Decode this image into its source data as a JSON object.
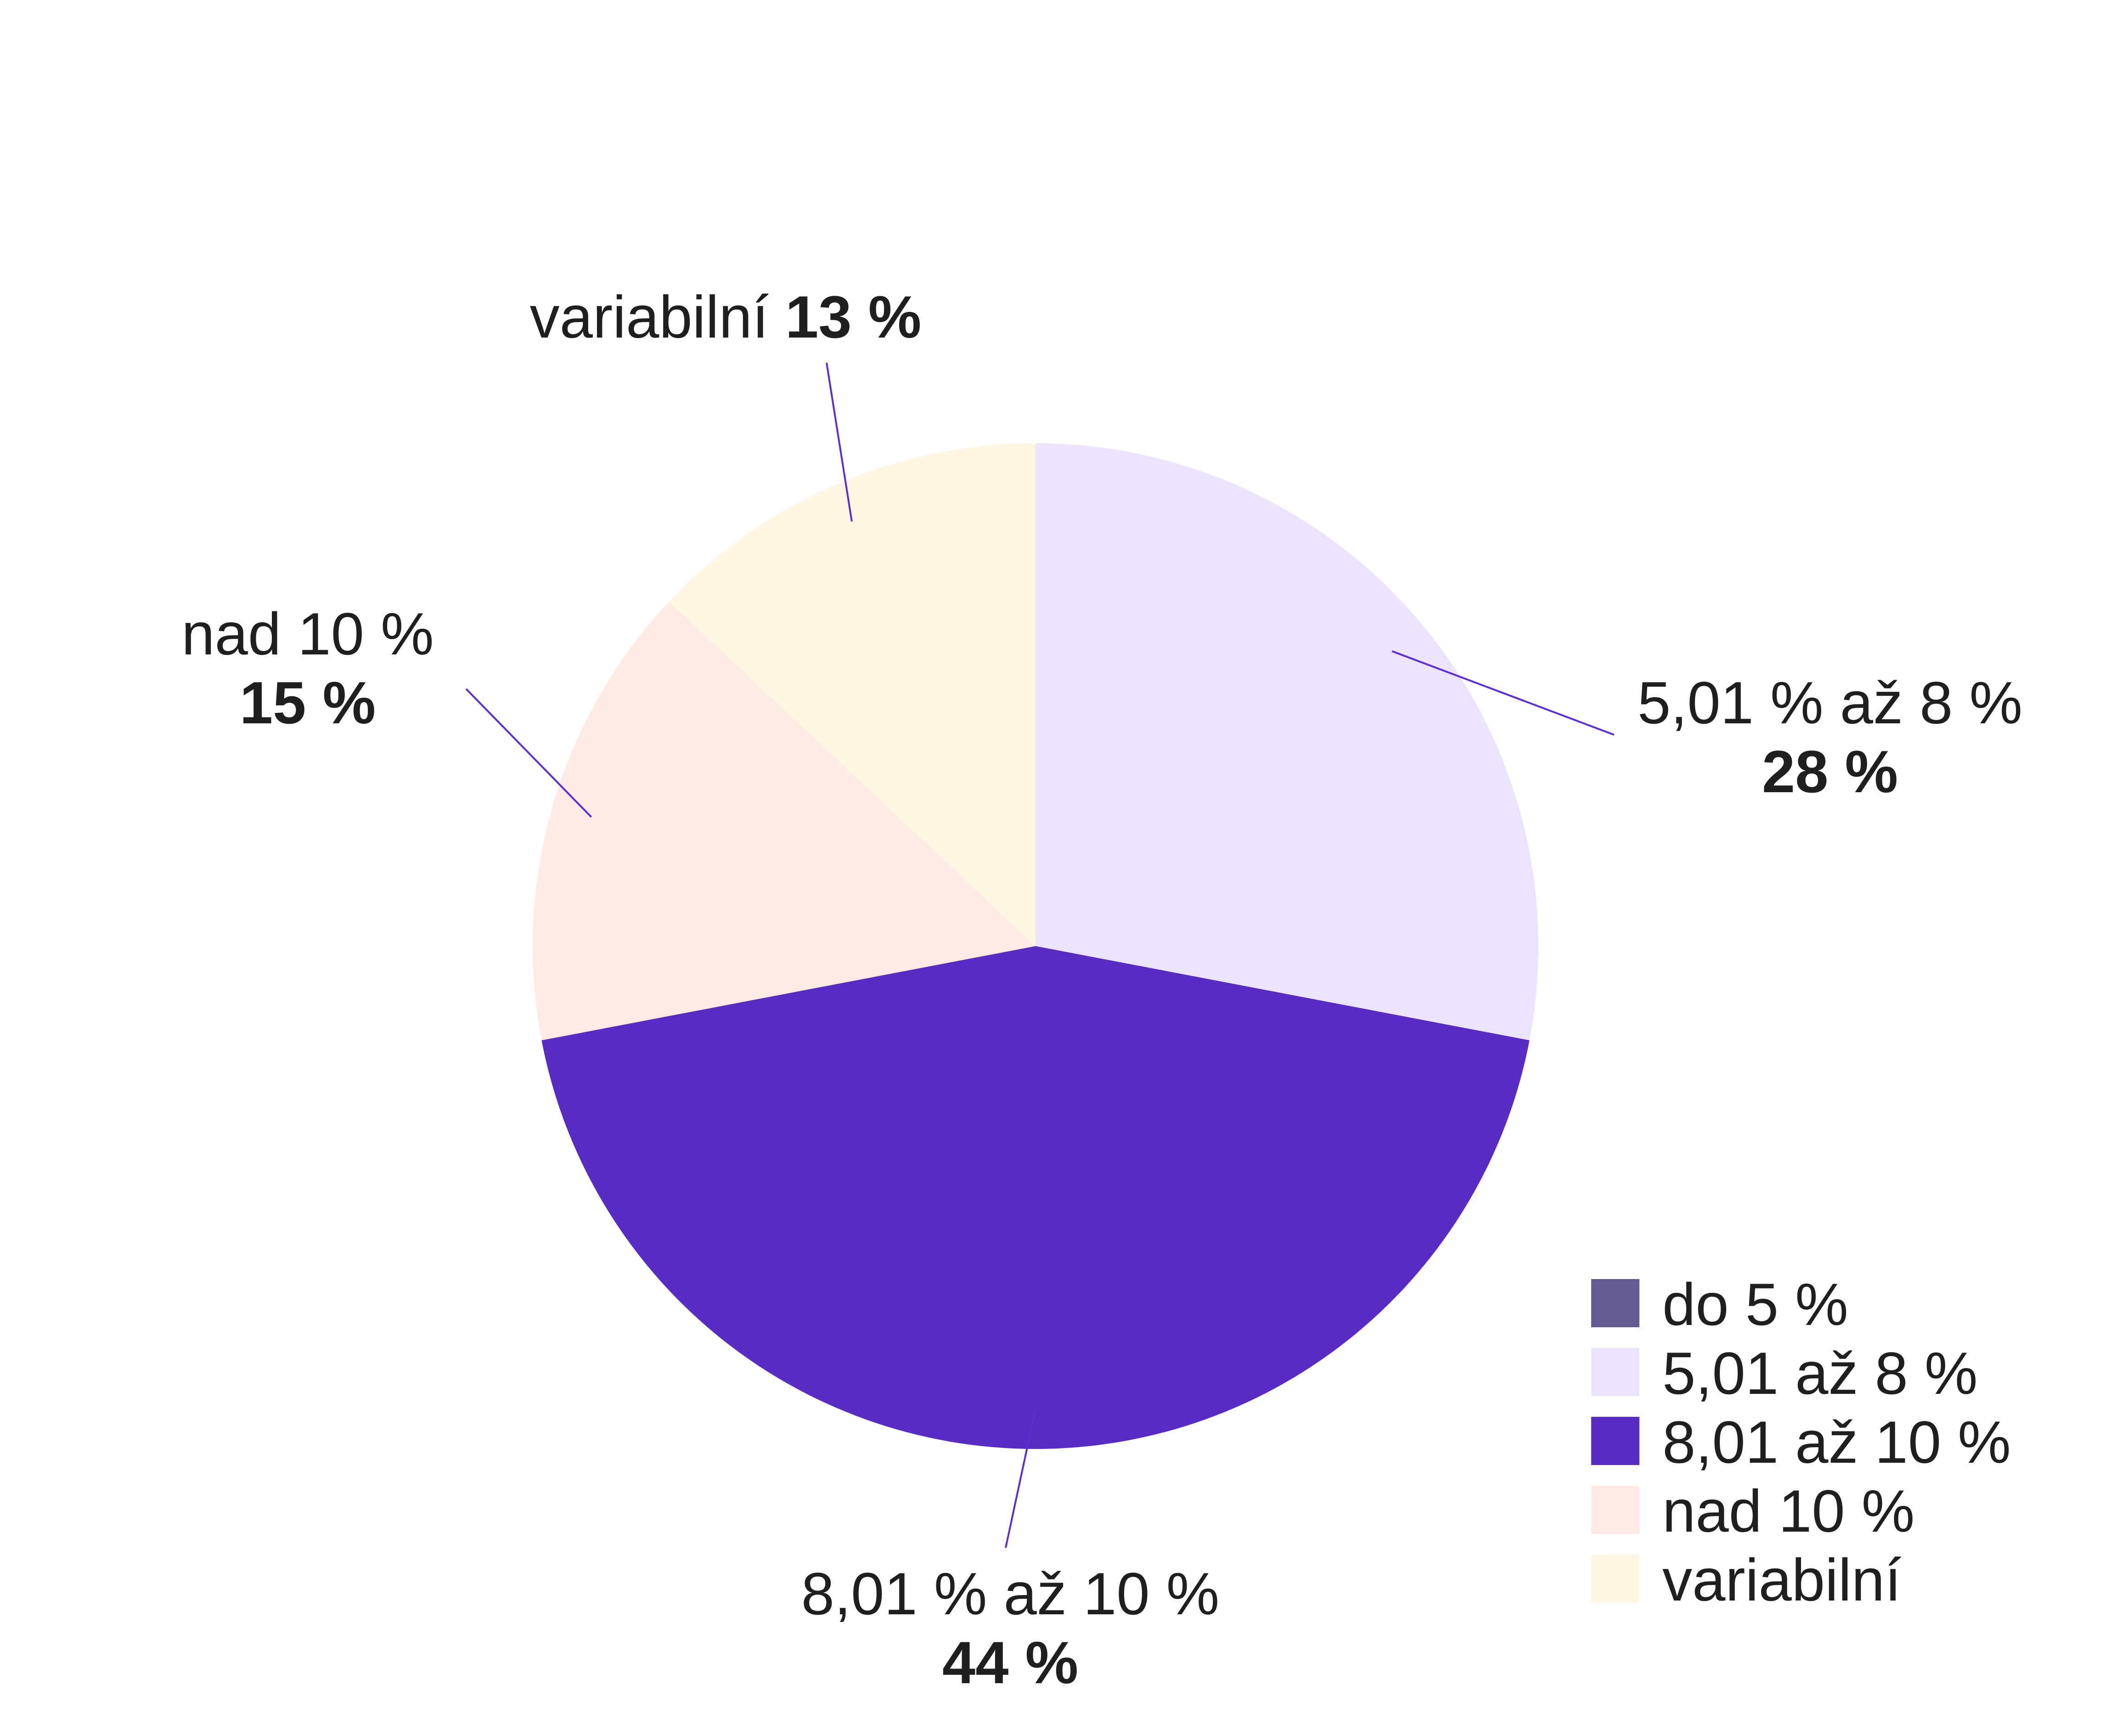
{
  "chart_data": {
    "type": "pie",
    "title": "",
    "slices": [
      {
        "label": "do 5 %",
        "value": 0,
        "color": "#655a94"
      },
      {
        "label": "5,01 % až 8 %",
        "value": 28,
        "pct_label": "28 %",
        "color": "#ebe3ff"
      },
      {
        "label": "8,01 % až 10 %",
        "value": 44,
        "pct_label": "44 %",
        "color": "#582cc2"
      },
      {
        "label": "nad 10 %",
        "value": 15,
        "pct_label": "15 %",
        "color": "#ffeae4"
      },
      {
        "label": "variabilní",
        "value": 13,
        "pct_label": "13 %",
        "color": "#fff6e3"
      }
    ],
    "legend": {
      "position": "bottom-right",
      "items": [
        {
          "label": "do 5 %",
          "color": "#655a94"
        },
        {
          "label": "5,01 až 8 %",
          "color": "#ebe3ff"
        },
        {
          "label": "8,01 až 10 %",
          "color": "#582cc2"
        },
        {
          "label": "nad 10 %",
          "color": "#ffeae4"
        },
        {
          "label": "variabilní",
          "color": "#fff6e3"
        }
      ]
    },
    "leader_line_color": "#5a2ed0"
  }
}
